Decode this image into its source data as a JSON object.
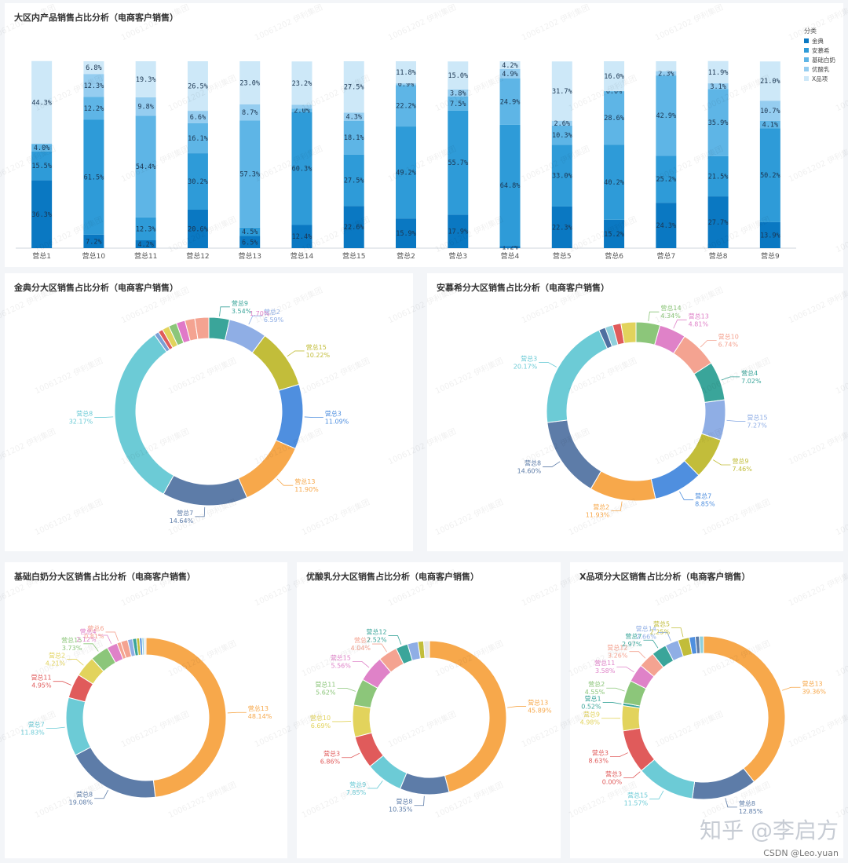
{
  "footer": {
    "zhihu": "知乎 @李启方",
    "csdn": "CSDN @Leo.yuan"
  },
  "watermark": "10061202 伊利集团",
  "chart_data": [
    {
      "type": "bar",
      "stacked": "percent",
      "title": "大区内产品销售占比分析（电商客户销售）",
      "legend_title": "分类",
      "categories": [
        "营总1",
        "营总10",
        "营总11",
        "营总12",
        "营总13",
        "营总14",
        "营总15",
        "营总2",
        "营总3",
        "营总4",
        "营总5",
        "营总6",
        "营总7",
        "营总8",
        "营总9"
      ],
      "series": [
        {
          "name": "金典",
          "color": "#0a78c2",
          "values": [
            36.3,
            7.2,
            4.2,
            20.6,
            6.5,
            12.4,
            22.6,
            15.9,
            17.9,
            1.2,
            22.3,
            15.2,
            24.3,
            27.7,
            13.9
          ]
        },
        {
          "name": "安慕希",
          "color": "#2e9bd8",
          "values": [
            15.5,
            61.5,
            12.3,
            30.2,
            4.5,
            60.3,
            27.5,
            49.2,
            55.7,
            64.8,
            33.0,
            40.2,
            25.2,
            21.5,
            50.2
          ]
        },
        {
          "name": "基础白奶",
          "color": "#5eb5e6",
          "values": [
            4.0,
            12.2,
            54.4,
            16.1,
            57.3,
            2.0,
            18.1,
            22.2,
            7.5,
            24.9,
            10.3,
            28.6,
            42.9,
            35.9,
            4.1
          ]
        },
        {
          "name": "优酸乳",
          "color": "#95cdf0",
          "values": [
            0.0,
            12.3,
            9.8,
            6.6,
            8.7,
            2.0,
            4.3,
            0.9,
            3.8,
            4.9,
            2.6,
            0.0,
            2.3,
            3.1,
            10.7
          ]
        },
        {
          "name": "X品项",
          "color": "#cde8f8",
          "values": [
            44.3,
            6.8,
            19.3,
            26.5,
            23.0,
            23.2,
            27.5,
            11.8,
            15.0,
            4.2,
            31.7,
            16.0,
            5.3,
            11.9,
            21.0
          ]
        }
      ],
      "labels": [
        [
          "36.3%",
          "15.5%",
          "4.0%",
          "",
          "44.3%"
        ],
        [
          "7.2%",
          "61.5%",
          "12.2%",
          "12.3%",
          "6.8%"
        ],
        [
          "4.2%",
          "12.3%",
          "54.4%",
          "9.8%",
          "19.3%"
        ],
        [
          "20.6%",
          "30.2%",
          "16.1%",
          "6.6%",
          "26.5%"
        ],
        [
          "6.5%",
          "4.5%",
          "57.3%",
          "8.7%",
          "23.0%"
        ],
        [
          "12.4%",
          "60.3%",
          "2.0%",
          "",
          "23.2%"
        ],
        [
          "22.6%",
          "27.5%",
          "18.1%",
          "4.3%",
          "27.5%"
        ],
        [
          "15.9%",
          "49.2%",
          "22.2%",
          "0.9%",
          "11.8%"
        ],
        [
          "17.9%",
          "55.7%",
          "7.5%",
          "3.8%",
          "15.0%"
        ],
        [
          "1.2%",
          "64.8%",
          "24.9%",
          "4.9%",
          "4.2%"
        ],
        [
          "22.3%",
          "33.0%",
          "10.3%",
          "2.6%",
          "31.7%"
        ],
        [
          "15.2%",
          "40.2%",
          "28.6%",
          "0.0%",
          "16.0%"
        ],
        [
          "24.3%",
          "25.2%",
          "42.9%",
          "2.3%",
          ""
        ],
        [
          "27.7%",
          "21.5%",
          "35.9%",
          "3.1%",
          "11.9%"
        ],
        [
          "13.9%",
          "50.2%",
          "4.1%",
          "10.7%",
          "21.0%"
        ]
      ],
      "ylim": [
        0,
        100
      ]
    },
    {
      "type": "pie",
      "donut": true,
      "title": "金典分大区销售占比分析（电商客户销售）",
      "slices": [
        {
          "name": "营总9",
          "value": 3.54,
          "color": "#3aa59a",
          "label": true
        },
        {
          "name": "营总2",
          "value": 6.59,
          "color": "#8faee5",
          "label": true
        },
        {
          "name": "营总15",
          "value": 10.22,
          "color": "#c2bd3a",
          "label": true
        },
        {
          "name": "营总3",
          "value": 11.09,
          "color": "#4f8fdf",
          "label": true
        },
        {
          "name": "营总13",
          "value": 11.9,
          "color": "#f7a84b",
          "label": true
        },
        {
          "name": "营总7",
          "value": 14.64,
          "color": "#5d7ca8",
          "label": true
        },
        {
          "name": "营总8",
          "value": 32.17,
          "color": "#6ccbd6",
          "label": true
        },
        {
          "name": "",
          "value": 0.8,
          "color": "#7b9fd4",
          "label": false
        },
        {
          "name": "",
          "value": 0.8,
          "color": "#e05b5b",
          "label": false
        },
        {
          "name": "",
          "value": 1.2,
          "color": "#e2d35c",
          "label": false
        },
        {
          "name": "",
          "value": 1.4,
          "color": "#8cc67a",
          "label": false
        },
        {
          "name": "",
          "value": 1.5,
          "color": "#e079c8",
          "label": false
        },
        {
          "name": "",
          "value": 1.7,
          "color": "#f4a391",
          "label": false
        },
        {
          "name": "",
          "value": 2.4,
          "color": "#f4a391",
          "label": false
        }
      ],
      "partial_label": "1.70%"
    },
    {
      "type": "pie",
      "donut": true,
      "title": "安慕希分大区销售占比分析（电商客户销售）",
      "slices": [
        {
          "name": "营总14",
          "value": 4.34,
          "color": "#8cc67a",
          "label": true
        },
        {
          "name": "营总13",
          "value": 4.81,
          "color": "#df82c8",
          "label": true
        },
        {
          "name": "营总10",
          "value": 6.74,
          "color": "#f4a391",
          "label": true
        },
        {
          "name": "营总4",
          "value": 7.02,
          "color": "#3aa59a",
          "label": true
        },
        {
          "name": "营总15",
          "value": 7.27,
          "color": "#8faee5",
          "label": true
        },
        {
          "name": "营总9",
          "value": 7.46,
          "color": "#c2bd3a",
          "label": true
        },
        {
          "name": "营总7",
          "value": 8.85,
          "color": "#4f8fdf",
          "label": true
        },
        {
          "name": "营总2",
          "value": 11.93,
          "color": "#f7a84b",
          "label": true
        },
        {
          "name": "营总8",
          "value": 14.6,
          "color": "#5d7ca8",
          "label": true
        },
        {
          "name": "营总3",
          "value": 20.17,
          "color": "#6ccbd6",
          "label": true
        },
        {
          "name": "",
          "value": 1.2,
          "color": "#4f6fa0",
          "label": false
        },
        {
          "name": "",
          "value": 1.4,
          "color": "#8fd0dc",
          "label": false
        },
        {
          "name": "",
          "value": 1.5,
          "color": "#e05b5b",
          "label": false
        },
        {
          "name": "",
          "value": 2.7,
          "color": "#e2d35c",
          "label": false
        }
      ]
    },
    {
      "type": "pie",
      "donut": true,
      "title": "基础白奶分大区销售占比分析（电商客户销售）",
      "slices": [
        {
          "name": "营总13",
          "value": 48.14,
          "color": "#f7a84b",
          "label": true
        },
        {
          "name": "营总8",
          "value": 19.08,
          "color": "#5d7ca8",
          "label": true
        },
        {
          "name": "营总7",
          "value": 11.83,
          "color": "#6ccbd6",
          "label": true
        },
        {
          "name": "营总11",
          "value": 4.95,
          "color": "#e05b5b",
          "label": true
        },
        {
          "name": "营总2",
          "value": 4.21,
          "color": "#e2d35c",
          "label": true
        },
        {
          "name": "营总15",
          "value": 3.73,
          "color": "#8cc67a",
          "label": true
        },
        {
          "name": "营总4",
          "value": 2.12,
          "color": "#df82c8",
          "label": true
        },
        {
          "name": "营总6",
          "value": 0.81,
          "color": "#f4a391",
          "label": true
        },
        {
          "name": "",
          "value": 1.4,
          "color": "#f4a391",
          "label": false
        },
        {
          "name": "",
          "value": 1.0,
          "color": "#8faee5",
          "label": false
        },
        {
          "name": "",
          "value": 0.8,
          "color": "#3aa59a",
          "label": false
        },
        {
          "name": "",
          "value": 0.6,
          "color": "#c2bd3a",
          "label": false
        },
        {
          "name": "",
          "value": 0.5,
          "color": "#4f8fdf",
          "label": false
        },
        {
          "name": "",
          "value": 0.4,
          "color": "#8fd0dc",
          "label": false
        },
        {
          "name": "",
          "value": 0.42,
          "color": "#e5e5e5",
          "label": false
        }
      ]
    },
    {
      "type": "pie",
      "donut": true,
      "title": "优酸乳分大区销售占比分析（电商客户销售）",
      "slices": [
        {
          "name": "营总13",
          "value": 45.89,
          "color": "#f7a84b",
          "label": true
        },
        {
          "name": "营总8",
          "value": 10.35,
          "color": "#5d7ca8",
          "label": true
        },
        {
          "name": "营总9",
          "value": 7.85,
          "color": "#6ccbd6",
          "label": true
        },
        {
          "name": "营总3",
          "value": 6.86,
          "color": "#e05b5b",
          "label": true
        },
        {
          "name": "营总10",
          "value": 6.69,
          "color": "#e2d35c",
          "label": true
        },
        {
          "name": "营总11",
          "value": 5.62,
          "color": "#8cc67a",
          "label": true
        },
        {
          "name": "营总15",
          "value": 5.56,
          "color": "#df82c8",
          "label": true
        },
        {
          "name": "营总7",
          "value": 4.04,
          "color": "#f4a391",
          "label": true
        },
        {
          "name": "营总12",
          "value": 2.52,
          "color": "#3aa59a",
          "label": true
        },
        {
          "name": "",
          "value": 2.2,
          "color": "#8faee5",
          "label": false
        },
        {
          "name": "",
          "value": 1.2,
          "color": "#c2bd3a",
          "label": false
        },
        {
          "name": "",
          "value": 1.22,
          "color": "#e5e5e5",
          "label": false
        }
      ]
    },
    {
      "type": "pie",
      "donut": true,
      "title": "X品项分大区销售占比分析（电商客户销售）",
      "slices": [
        {
          "name": "营总13",
          "value": 39.36,
          "color": "#f7a84b",
          "label": true
        },
        {
          "name": "营总8",
          "value": 12.85,
          "color": "#5d7ca8",
          "label": true
        },
        {
          "name": "营总15",
          "value": 11.57,
          "color": "#6ccbd6",
          "label": true
        },
        {
          "name": "营总3",
          "value": 0.0,
          "color": "#e05b5b",
          "label": true
        },
        {
          "name": "营总3",
          "value": 8.63,
          "color": "#e05b5b",
          "label": true
        },
        {
          "name": "营总9",
          "value": 4.98,
          "color": "#e2d35c",
          "label": true
        },
        {
          "name": "营总1",
          "value": 0.52,
          "color": "#3aa59a",
          "label": true
        },
        {
          "name": "营总2",
          "value": 4.55,
          "color": "#8cc67a",
          "label": true
        },
        {
          "name": "营总11",
          "value": 3.58,
          "color": "#df82c8",
          "label": true
        },
        {
          "name": "营总12",
          "value": 3.26,
          "color": "#f4a391",
          "label": true
        },
        {
          "name": "营总7",
          "value": 2.97,
          "color": "#3aa59a",
          "label": true
        },
        {
          "name": "营总14",
          "value": 2.66,
          "color": "#8faee5",
          "label": true
        },
        {
          "name": "营总5",
          "value": 2.25,
          "color": "#c2bd3a",
          "label": true
        },
        {
          "name": "",
          "value": 1.2,
          "color": "#4f8fdf",
          "label": false
        },
        {
          "name": "",
          "value": 0.8,
          "color": "#5d7ca8",
          "label": false
        },
        {
          "name": "",
          "value": 0.82,
          "color": "#8fd0dc",
          "label": false
        }
      ]
    }
  ]
}
